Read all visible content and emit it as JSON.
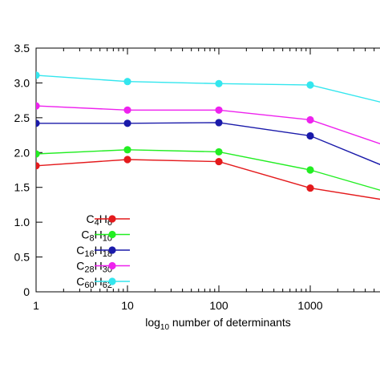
{
  "chart_data": {
    "type": "line",
    "xlabel": "log10 number of determinants",
    "xlabel_parts": {
      "pre": "log",
      "sub": "10",
      "post": " number of determinants"
    },
    "x_scale": "log",
    "x": [
      1,
      10,
      100,
      1000,
      10000
    ],
    "x_ticks": [
      {
        "value": 1,
        "label": "1"
      },
      {
        "value": 10,
        "label": "10"
      },
      {
        "value": 100,
        "label": "100"
      },
      {
        "value": 1000,
        "label": "1000"
      }
    ],
    "ylim": [
      0,
      3.5
    ],
    "y_ticks": [
      {
        "value": 0,
        "label": "0"
      },
      {
        "value": 0.5,
        "label": "0.5"
      },
      {
        "value": 1.0,
        "label": "1.0"
      },
      {
        "value": 1.5,
        "label": "1.5"
      },
      {
        "value": 2.0,
        "label": "2.0"
      },
      {
        "value": 2.5,
        "label": "2.5"
      },
      {
        "value": 3.0,
        "label": "3.0"
      },
      {
        "value": 3.5,
        "label": "3.5"
      }
    ],
    "legend_position": "bottom-left",
    "grid": false,
    "series": [
      {
        "name": "C4H6",
        "name_parts": [
          [
            "C",
            ""
          ],
          [
            "4",
            "sub"
          ],
          [
            "H",
            ""
          ],
          [
            "6",
            "sub"
          ]
        ],
        "color": "#e41a1c",
        "values": [
          1.81,
          1.9,
          1.87,
          1.49,
          1.28
        ]
      },
      {
        "name": "C8H10",
        "name_parts": [
          [
            "C",
            ""
          ],
          [
            "8",
            "sub"
          ],
          [
            "H",
            ""
          ],
          [
            "10",
            "sub"
          ]
        ],
        "color": "#22ee22",
        "values": [
          1.98,
          2.04,
          2.01,
          1.75,
          1.37
        ]
      },
      {
        "name": "C16H18",
        "name_parts": [
          [
            "C",
            ""
          ],
          [
            "16",
            "sub"
          ],
          [
            "H",
            ""
          ],
          [
            "18",
            "sub"
          ]
        ],
        "color": "#1a1aaa",
        "values": [
          2.42,
          2.42,
          2.43,
          2.24,
          1.7
        ]
      },
      {
        "name": "C28H30",
        "name_parts": [
          [
            "C",
            ""
          ],
          [
            "28",
            "sub"
          ],
          [
            "H",
            ""
          ],
          [
            "30",
            "sub"
          ]
        ],
        "color": "#ee22ee",
        "values": [
          2.67,
          2.61,
          2.61,
          2.47,
          2.02
        ]
      },
      {
        "name": "C60H62",
        "name_parts": [
          [
            "C",
            ""
          ],
          [
            "60",
            "sub"
          ],
          [
            "H",
            ""
          ],
          [
            "62",
            "sub"
          ]
        ],
        "color": "#33e6ee",
        "values": [
          3.11,
          3.02,
          2.99,
          2.97,
          2.65
        ]
      }
    ]
  }
}
